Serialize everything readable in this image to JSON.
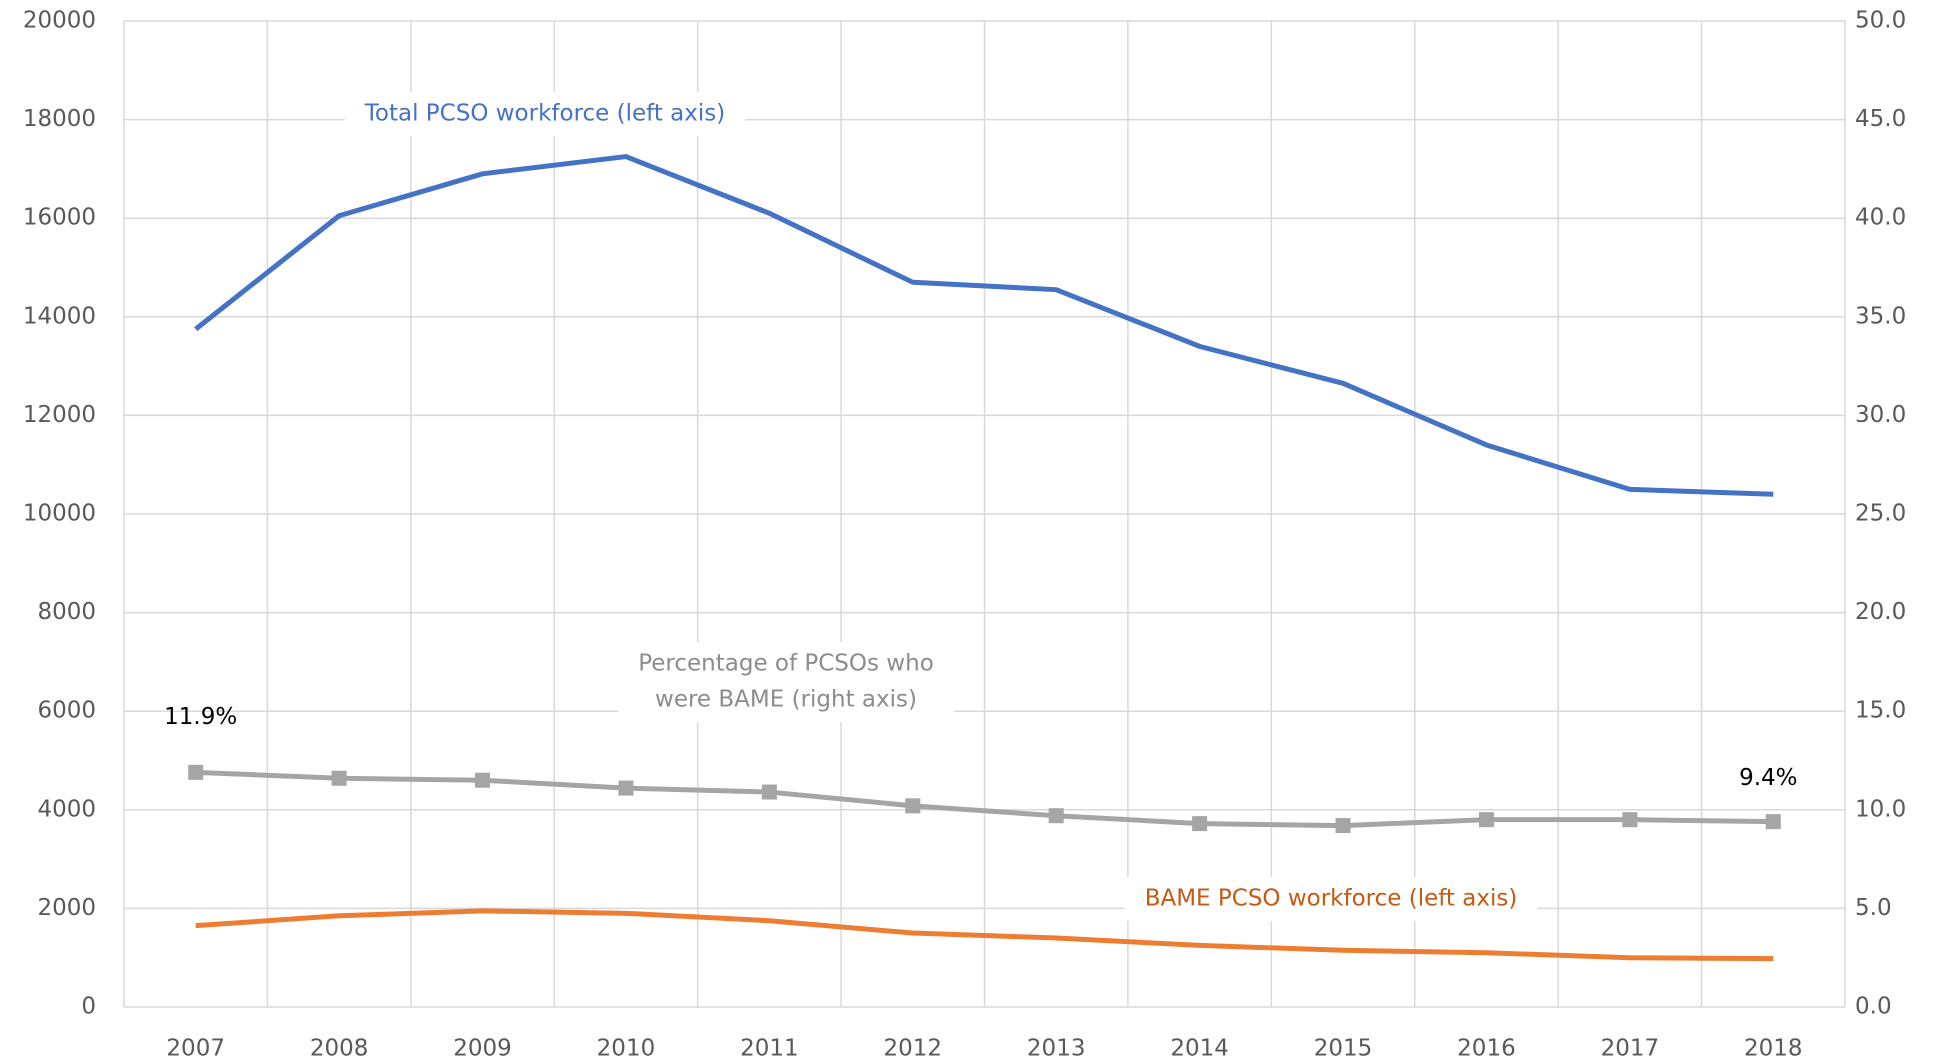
{
  "chart_data": {
    "type": "line",
    "categories": [
      "2007",
      "2008",
      "2009",
      "2010",
      "2011",
      "2012",
      "2013",
      "2014",
      "2015",
      "2016",
      "2017",
      "2018"
    ],
    "series": [
      {
        "name": "Total PCSO workforce (left axis)",
        "color": "#4472c4",
        "axis": "y",
        "values": [
          13750,
          16050,
          16900,
          17250,
          16100,
          14700,
          14550,
          13400,
          12650,
          11400,
          10500,
          10400
        ]
      },
      {
        "name": "Percentage of PCSOs who were BAME (right axis)",
        "color": "#a5a5a5",
        "axis": "y2",
        "marker": "square",
        "values": [
          11.9,
          11.6,
          11.5,
          11.1,
          10.9,
          10.2,
          9.7,
          9.3,
          9.2,
          9.5,
          9.5,
          9.4
        ],
        "value_labels": [
          "11.9%",
          null,
          null,
          null,
          null,
          null,
          null,
          null,
          null,
          null,
          null,
          "9.4%"
        ]
      },
      {
        "name": "BAME PCSO workforce (left axis)",
        "color": "#ed7d31",
        "axis": "y",
        "values": [
          1650,
          1850,
          1950,
          1900,
          1750,
          1500,
          1400,
          1250,
          1150,
          1100,
          1000,
          980
        ]
      }
    ],
    "annotations": [
      {
        "lines": [
          "Total PCSO workforce (left axis)"
        ]
      },
      {
        "lines": [
          "Percentage of PCSOs who",
          "were BAME (right axis)"
        ]
      },
      {
        "lines": [
          "BAME PCSO workforce (left axis)"
        ]
      }
    ],
    "ylim": [
      0,
      20000
    ],
    "yticks": [
      0,
      2000,
      4000,
      6000,
      8000,
      10000,
      12000,
      14000,
      16000,
      18000,
      20000
    ],
    "y2lim": [
      0,
      50
    ],
    "y2ticks": [
      {
        "value": 0,
        "label": "0.0"
      },
      {
        "value": 5,
        "label": "5.0"
      },
      {
        "value": 10,
        "label": "10.0"
      },
      {
        "value": 15,
        "label": "15.0"
      },
      {
        "value": 20,
        "label": "20.0"
      },
      {
        "value": 25,
        "label": "25.0"
      },
      {
        "value": 30,
        "label": "30.0"
      },
      {
        "value": 35,
        "label": "35.0"
      },
      {
        "value": 40,
        "label": "40.0"
      },
      {
        "value": 45,
        "label": "45.0"
      },
      {
        "value": 50,
        "label": "50.0"
      }
    ],
    "grid": true,
    "legend": "none"
  }
}
